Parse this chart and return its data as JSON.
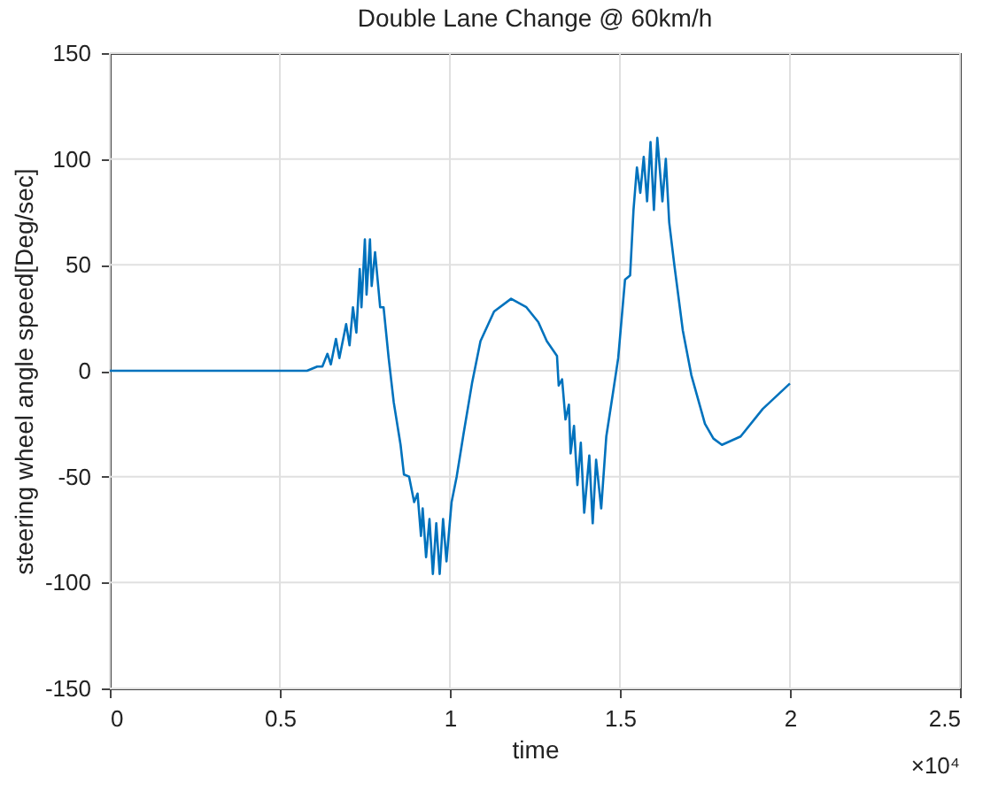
{
  "chart_data": {
    "type": "line",
    "title": "Double Lane Change @ 60km/h",
    "xlabel": "time",
    "ylabel": "steering wheel angle speed[Deg/sec]",
    "xlim": [
      0,
      2.5
    ],
    "xticks": [
      0,
      0.5,
      1,
      1.5,
      2,
      2.5
    ],
    "ylim": [
      -150,
      150
    ],
    "yticks": [
      -150,
      -100,
      -50,
      0,
      50,
      100,
      150
    ],
    "grid": true,
    "marker": "none",
    "line_style": "solid",
    "annotations": [
      "×10⁴"
    ],
    "x": [
      0,
      0.58,
      0.61,
      0.625,
      0.64,
      0.65,
      0.665,
      0.675,
      0.695,
      0.705,
      0.715,
      0.725,
      0.735,
      0.74,
      0.75,
      0.755,
      0.765,
      0.77,
      0.78,
      0.795,
      0.805,
      0.82,
      0.835,
      0.85,
      0.855,
      0.865,
      0.88,
      0.895,
      0.905,
      0.915,
      0.92,
      0.93,
      0.94,
      0.95,
      0.96,
      0.97,
      0.98,
      0.99,
      1.005,
      1.02,
      1.04,
      1.065,
      1.09,
      1.13,
      1.18,
      1.225,
      1.26,
      1.285,
      1.315,
      1.32,
      1.33,
      1.34,
      1.35,
      1.355,
      1.365,
      1.375,
      1.385,
      1.395,
      1.41,
      1.42,
      1.43,
      1.445,
      1.46,
      1.48,
      1.495,
      1.515,
      1.53,
      1.54,
      1.55,
      1.56,
      1.57,
      1.58,
      1.59,
      1.6,
      1.61,
      1.625,
      1.635,
      1.645,
      1.66,
      1.685,
      1.71,
      1.75,
      1.775,
      1.8,
      1.855,
      1.92,
      2.0
    ],
    "series": [
      {
        "color": "#0072bd",
        "values": [
          0,
          0,
          2,
          2,
          8,
          3,
          15,
          6,
          22,
          12,
          30,
          18,
          48,
          30,
          62,
          36,
          62,
          40,
          56,
          30,
          30,
          6,
          -15,
          -30,
          -35,
          -49,
          -50,
          -62,
          -58,
          -78,
          -65,
          -88,
          -70,
          -96,
          -72,
          -96,
          -70,
          -90,
          -62,
          -50,
          -30,
          -6,
          14,
          28,
          34,
          30,
          23,
          14,
          7,
          -7,
          -4,
          -23,
          -16,
          -39,
          -26,
          -54,
          -34,
          -67,
          -40,
          -72,
          -42,
          -65,
          -31,
          -10,
          6,
          43,
          45,
          76,
          96,
          84,
          101,
          80,
          108,
          76,
          110,
          80,
          100,
          70,
          50,
          19,
          -2,
          -25,
          -32,
          -35,
          -31,
          -18,
          -6
        ]
      }
    ]
  }
}
